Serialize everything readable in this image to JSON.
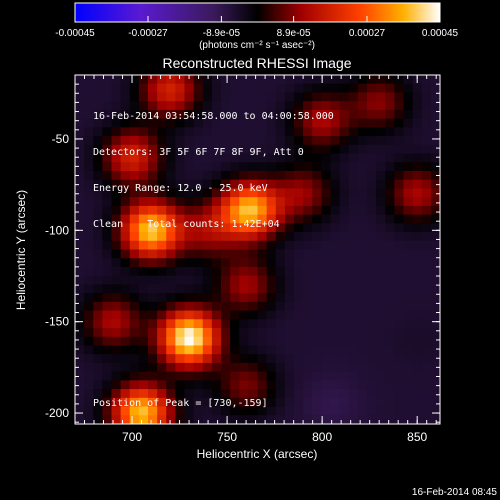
{
  "chart_data": {
    "type": "heatmap",
    "title": "Reconstructed RHESSI Image",
    "xlabel": "Heliocentric X (arcsec)",
    "ylabel": "Heliocentric Y (arcsec)",
    "xlim": [
      670,
      862
    ],
    "ylim": [
      -206,
      -15
    ],
    "x_ticks": [
      700,
      750,
      800,
      850
    ],
    "y_ticks": [
      -50,
      -100,
      -150,
      -200
    ],
    "colorbar": {
      "range": [
        -0.00045,
        0.00045
      ],
      "tick_labels": [
        "-0.00045",
        "-0.00027",
        "-8.9e-05",
        "8.9e-05",
        "0.00027",
        "0.00045"
      ],
      "units_label": "(photons cm⁻² s⁻¹ asec⁻²)",
      "colormap": "blue-purple-black-red-orange-yellow-white"
    },
    "peak": [
      730,
      -159
    ],
    "sources": [
      {
        "x": 740,
        "y": -100,
        "intensity": 0.0001
      },
      {
        "x": 710,
        "y": -100,
        "intensity": 0.00039
      },
      {
        "x": 762,
        "y": -89,
        "intensity": 0.00037
      },
      {
        "x": 730,
        "y": -159,
        "intensity": 0.00045
      },
      {
        "x": 705,
        "y": -200,
        "intensity": 0.00038
      },
      {
        "x": 720,
        "y": -23,
        "intensity": 0.00018
      },
      {
        "x": 800,
        "y": -40,
        "intensity": 0.00012
      },
      {
        "x": 790,
        "y": -80,
        "intensity": 0.0001
      },
      {
        "x": 760,
        "y": -130,
        "intensity": 0.00011
      },
      {
        "x": 850,
        "y": -80,
        "intensity": 0.00012
      },
      {
        "x": 700,
        "y": -60,
        "intensity": 0.00018
      },
      {
        "x": 760,
        "y": -185,
        "intensity": 8e-05
      },
      {
        "x": 690,
        "y": -150,
        "intensity": 0.00012
      },
      {
        "x": 830,
        "y": -30,
        "intensity": 9e-05
      },
      {
        "x": 805,
        "y": -195,
        "intensity": -9e-05
      },
      {
        "x": 820,
        "y": -130,
        "intensity": -6e-05
      },
      {
        "x": 850,
        "y": -160,
        "intensity": -5e-05
      }
    ],
    "background_level": -6e-05
  },
  "annotation": {
    "time_range": "16-Feb-2014 03:54:58.000 to 04:00:58.000",
    "detectors": "Detectors: 3F 5F 6F 7F 8F 9F, Att 0",
    "energy": "Energy Range: 12.0 - 25.0 keV",
    "clean": "Clean    Total counts: 1.42E+04",
    "peak": "Position of Peak = [730,-159]"
  },
  "footer_timestamp": "16-Feb-2014 08:45"
}
